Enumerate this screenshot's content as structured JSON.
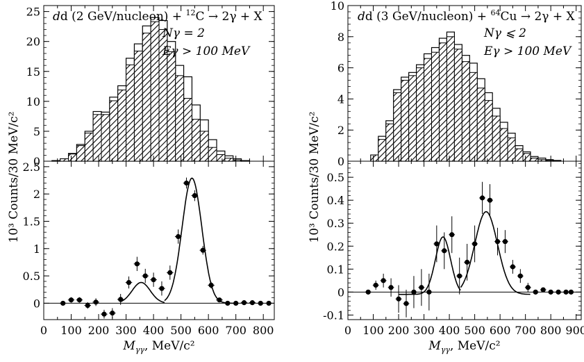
{
  "chart_data": [
    {
      "type": "bar",
      "panel": "left-top",
      "title_prefix": "d (2 GeV/nucleon) + ",
      "title_sup": "12",
      "title_suffix": "C → 2γ + X",
      "annotations": [
        "Nγ = 2",
        "Eγ > 100 MeV"
      ],
      "ylim": [
        0,
        26
      ],
      "yticks": [
        0,
        5,
        10,
        15,
        20,
        25
      ],
      "xlim": [
        0,
        840
      ],
      "bin_width": 30,
      "series": [
        {
          "name": "all",
          "x": [
            30,
            60,
            90,
            120,
            150,
            180,
            210,
            240,
            270,
            300,
            330,
            360,
            390,
            420,
            450,
            480,
            510,
            540,
            570,
            600,
            630,
            660,
            690,
            720
          ],
          "values": [
            0.1,
            0.4,
            1.3,
            2.8,
            5.0,
            8.3,
            8.2,
            10.7,
            12.6,
            17.2,
            19.6,
            22.6,
            24.0,
            23.5,
            20.0,
            16.0,
            14.1,
            9.4,
            6.9,
            3.6,
            1.7,
            0.9,
            0.4,
            0.1
          ]
        },
        {
          "name": "hatched",
          "x": [
            30,
            60,
            90,
            120,
            150,
            180,
            210,
            240,
            270,
            300,
            330,
            360,
            390,
            420,
            450,
            480,
            510,
            540,
            570,
            600,
            630,
            660,
            690,
            720
          ],
          "values": [
            0.1,
            0.4,
            1.2,
            2.6,
            4.7,
            7.8,
            7.8,
            10.1,
            11.9,
            16.1,
            18.4,
            21.4,
            23.3,
            22.0,
            18.3,
            14.3,
            10.5,
            7.0,
            5.0,
            2.3,
            1.1,
            0.5,
            0.2,
            0.1
          ]
        }
      ]
    },
    {
      "type": "scatter",
      "panel": "left-bottom",
      "ylabel": "10³ Counts/30 MeV/c²",
      "xlabel_main": "M",
      "xlabel_sub": "γγ",
      "xlabel_unit": ", MeV/c²",
      "xlim": [
        0,
        840
      ],
      "ylim": [
        -0.3,
        2.6
      ],
      "xticks": [
        0,
        100,
        200,
        300,
        400,
        500,
        600,
        700,
        800
      ],
      "yticks": [
        0,
        0.5,
        1,
        1.5,
        2,
        2.5
      ],
      "points": [
        {
          "x": 70,
          "y": 0.0,
          "err": 0.04
        },
        {
          "x": 100,
          "y": 0.06,
          "err": 0.05
        },
        {
          "x": 130,
          "y": 0.06,
          "err": 0.05
        },
        {
          "x": 160,
          "y": -0.04,
          "err": 0.06
        },
        {
          "x": 190,
          "y": 0.02,
          "err": 0.07
        },
        {
          "x": 220,
          "y": -0.2,
          "err": 0.08
        },
        {
          "x": 250,
          "y": -0.18,
          "err": 0.09
        },
        {
          "x": 280,
          "y": 0.07,
          "err": 0.1
        },
        {
          "x": 310,
          "y": 0.38,
          "err": 0.11
        },
        {
          "x": 340,
          "y": 0.72,
          "err": 0.13
        },
        {
          "x": 370,
          "y": 0.5,
          "err": 0.13
        },
        {
          "x": 400,
          "y": 0.43,
          "err": 0.13
        },
        {
          "x": 430,
          "y": 0.27,
          "err": 0.13
        },
        {
          "x": 460,
          "y": 0.56,
          "err": 0.13
        },
        {
          "x": 490,
          "y": 1.22,
          "err": 0.13
        },
        {
          "x": 520,
          "y": 2.2,
          "err": 0.1
        },
        {
          "x": 550,
          "y": 1.97,
          "err": 0.1
        },
        {
          "x": 580,
          "y": 0.97,
          "err": 0.08
        },
        {
          "x": 610,
          "y": 0.33,
          "err": 0.06
        },
        {
          "x": 640,
          "y": 0.06,
          "err": 0.04
        },
        {
          "x": 670,
          "y": 0.0,
          "err": 0.03
        },
        {
          "x": 700,
          "y": 0.0,
          "err": 0.02
        },
        {
          "x": 730,
          "y": 0.01,
          "err": 0.02
        },
        {
          "x": 760,
          "y": 0.01,
          "err": 0.02
        },
        {
          "x": 790,
          "y": 0.0,
          "err": 0.02
        },
        {
          "x": 820,
          "y": 0.0,
          "err": 0.02
        }
      ],
      "fit": {
        "baseline_start": 280,
        "peaks": [
          {
            "mean": 355,
            "sigma": 33,
            "amp": 0.38,
            "range": [
              280,
              440
            ]
          },
          {
            "mean": 540,
            "sigma": 36,
            "amp": 2.29,
            "range": [
              440,
              700
            ]
          }
        ]
      }
    },
    {
      "type": "bar",
      "panel": "right-top",
      "title_prefix": "d (3 GeV/nucleon) + ",
      "title_sup": "64",
      "title_suffix": "Cu → 2γ + X",
      "annotations": [
        "Nγ ⩽ 2",
        "Eγ > 100 MeV"
      ],
      "ylim": [
        0,
        10
      ],
      "yticks": [
        0,
        2,
        4,
        6,
        8,
        10
      ],
      "xlim": [
        0,
        920
      ],
      "bin_width": 30,
      "series": [
        {
          "name": "all",
          "x": [
            90,
            120,
            150,
            180,
            210,
            240,
            270,
            300,
            330,
            360,
            390,
            420,
            450,
            480,
            510,
            540,
            570,
            600,
            630,
            660,
            690,
            720,
            750,
            780,
            810
          ],
          "values": [
            0.4,
            1.6,
            2.6,
            4.6,
            5.4,
            5.7,
            6.2,
            6.9,
            7.3,
            7.9,
            8.3,
            7.5,
            6.8,
            6.3,
            5.3,
            4.4,
            3.4,
            2.5,
            1.8,
            1.0,
            0.6,
            0.3,
            0.2,
            0.1,
            0.05
          ]
        },
        {
          "name": "hatched",
          "x": [
            90,
            120,
            150,
            180,
            210,
            240,
            270,
            300,
            330,
            360,
            390,
            420,
            450,
            480,
            510,
            540,
            570,
            600,
            630,
            660,
            690,
            720,
            750,
            780,
            810
          ],
          "values": [
            0.4,
            1.4,
            2.4,
            4.4,
            5.2,
            5.5,
            6.0,
            6.6,
            7.0,
            7.6,
            8.0,
            7.2,
            6.4,
            5.7,
            4.7,
            3.9,
            2.9,
            2.1,
            1.5,
            0.8,
            0.5,
            0.2,
            0.1,
            0.05,
            0.02
          ]
        }
      ]
    },
    {
      "type": "scatter",
      "panel": "right-bottom",
      "ylabel": "10³ Counts/30 MeV/c²",
      "xlabel_main": "M",
      "xlabel_sub": "γγ",
      "xlabel_unit": ", MeV/c²",
      "xlim": [
        0,
        920
      ],
      "ylim": [
        -0.12,
        0.57
      ],
      "xticks": [
        0,
        100,
        200,
        300,
        400,
        500,
        600,
        700,
        800,
        900
      ],
      "yticks": [
        -0.1,
        0,
        0.1,
        0.2,
        0.3,
        0.4,
        0.5
      ],
      "points": [
        {
          "x": 80,
          "y": 0.0,
          "err": 0.01
        },
        {
          "x": 110,
          "y": 0.03,
          "err": 0.02
        },
        {
          "x": 140,
          "y": 0.05,
          "err": 0.03
        },
        {
          "x": 170,
          "y": 0.02,
          "err": 0.04
        },
        {
          "x": 200,
          "y": -0.03,
          "err": 0.06
        },
        {
          "x": 230,
          "y": -0.05,
          "err": 0.06
        },
        {
          "x": 260,
          "y": 0.0,
          "err": 0.07
        },
        {
          "x": 290,
          "y": 0.02,
          "err": 0.08
        },
        {
          "x": 320,
          "y": 0.0,
          "err": 0.08
        },
        {
          "x": 350,
          "y": 0.21,
          "err": 0.08
        },
        {
          "x": 380,
          "y": 0.18,
          "err": 0.08
        },
        {
          "x": 410,
          "y": 0.25,
          "err": 0.08
        },
        {
          "x": 440,
          "y": 0.07,
          "err": 0.08
        },
        {
          "x": 470,
          "y": 0.13,
          "err": 0.08
        },
        {
          "x": 500,
          "y": 0.21,
          "err": 0.08
        },
        {
          "x": 530,
          "y": 0.41,
          "err": 0.07
        },
        {
          "x": 560,
          "y": 0.4,
          "err": 0.07
        },
        {
          "x": 590,
          "y": 0.22,
          "err": 0.06
        },
        {
          "x": 620,
          "y": 0.22,
          "err": 0.05
        },
        {
          "x": 650,
          "y": 0.11,
          "err": 0.03
        },
        {
          "x": 680,
          "y": 0.07,
          "err": 0.03
        },
        {
          "x": 710,
          "y": 0.02,
          "err": 0.02
        },
        {
          "x": 740,
          "y": 0.0,
          "err": 0.01
        },
        {
          "x": 770,
          "y": 0.01,
          "err": 0.01
        },
        {
          "x": 800,
          "y": 0.0,
          "err": 0.01
        },
        {
          "x": 830,
          "y": 0.0,
          "err": 0.01
        },
        {
          "x": 860,
          "y": 0.0,
          "err": 0.01
        },
        {
          "x": 880,
          "y": 0.0,
          "err": 0.01
        }
      ],
      "fit": {
        "baseline_start": 200,
        "baseline": -0.01,
        "peaks": [
          {
            "mean": 375,
            "sigma": 30,
            "amp": 0.25,
            "range": [
              200,
              445
            ]
          },
          {
            "mean": 545,
            "sigma": 45,
            "amp": 0.36,
            "range": [
              445,
              720
            ]
          }
        ]
      }
    }
  ]
}
